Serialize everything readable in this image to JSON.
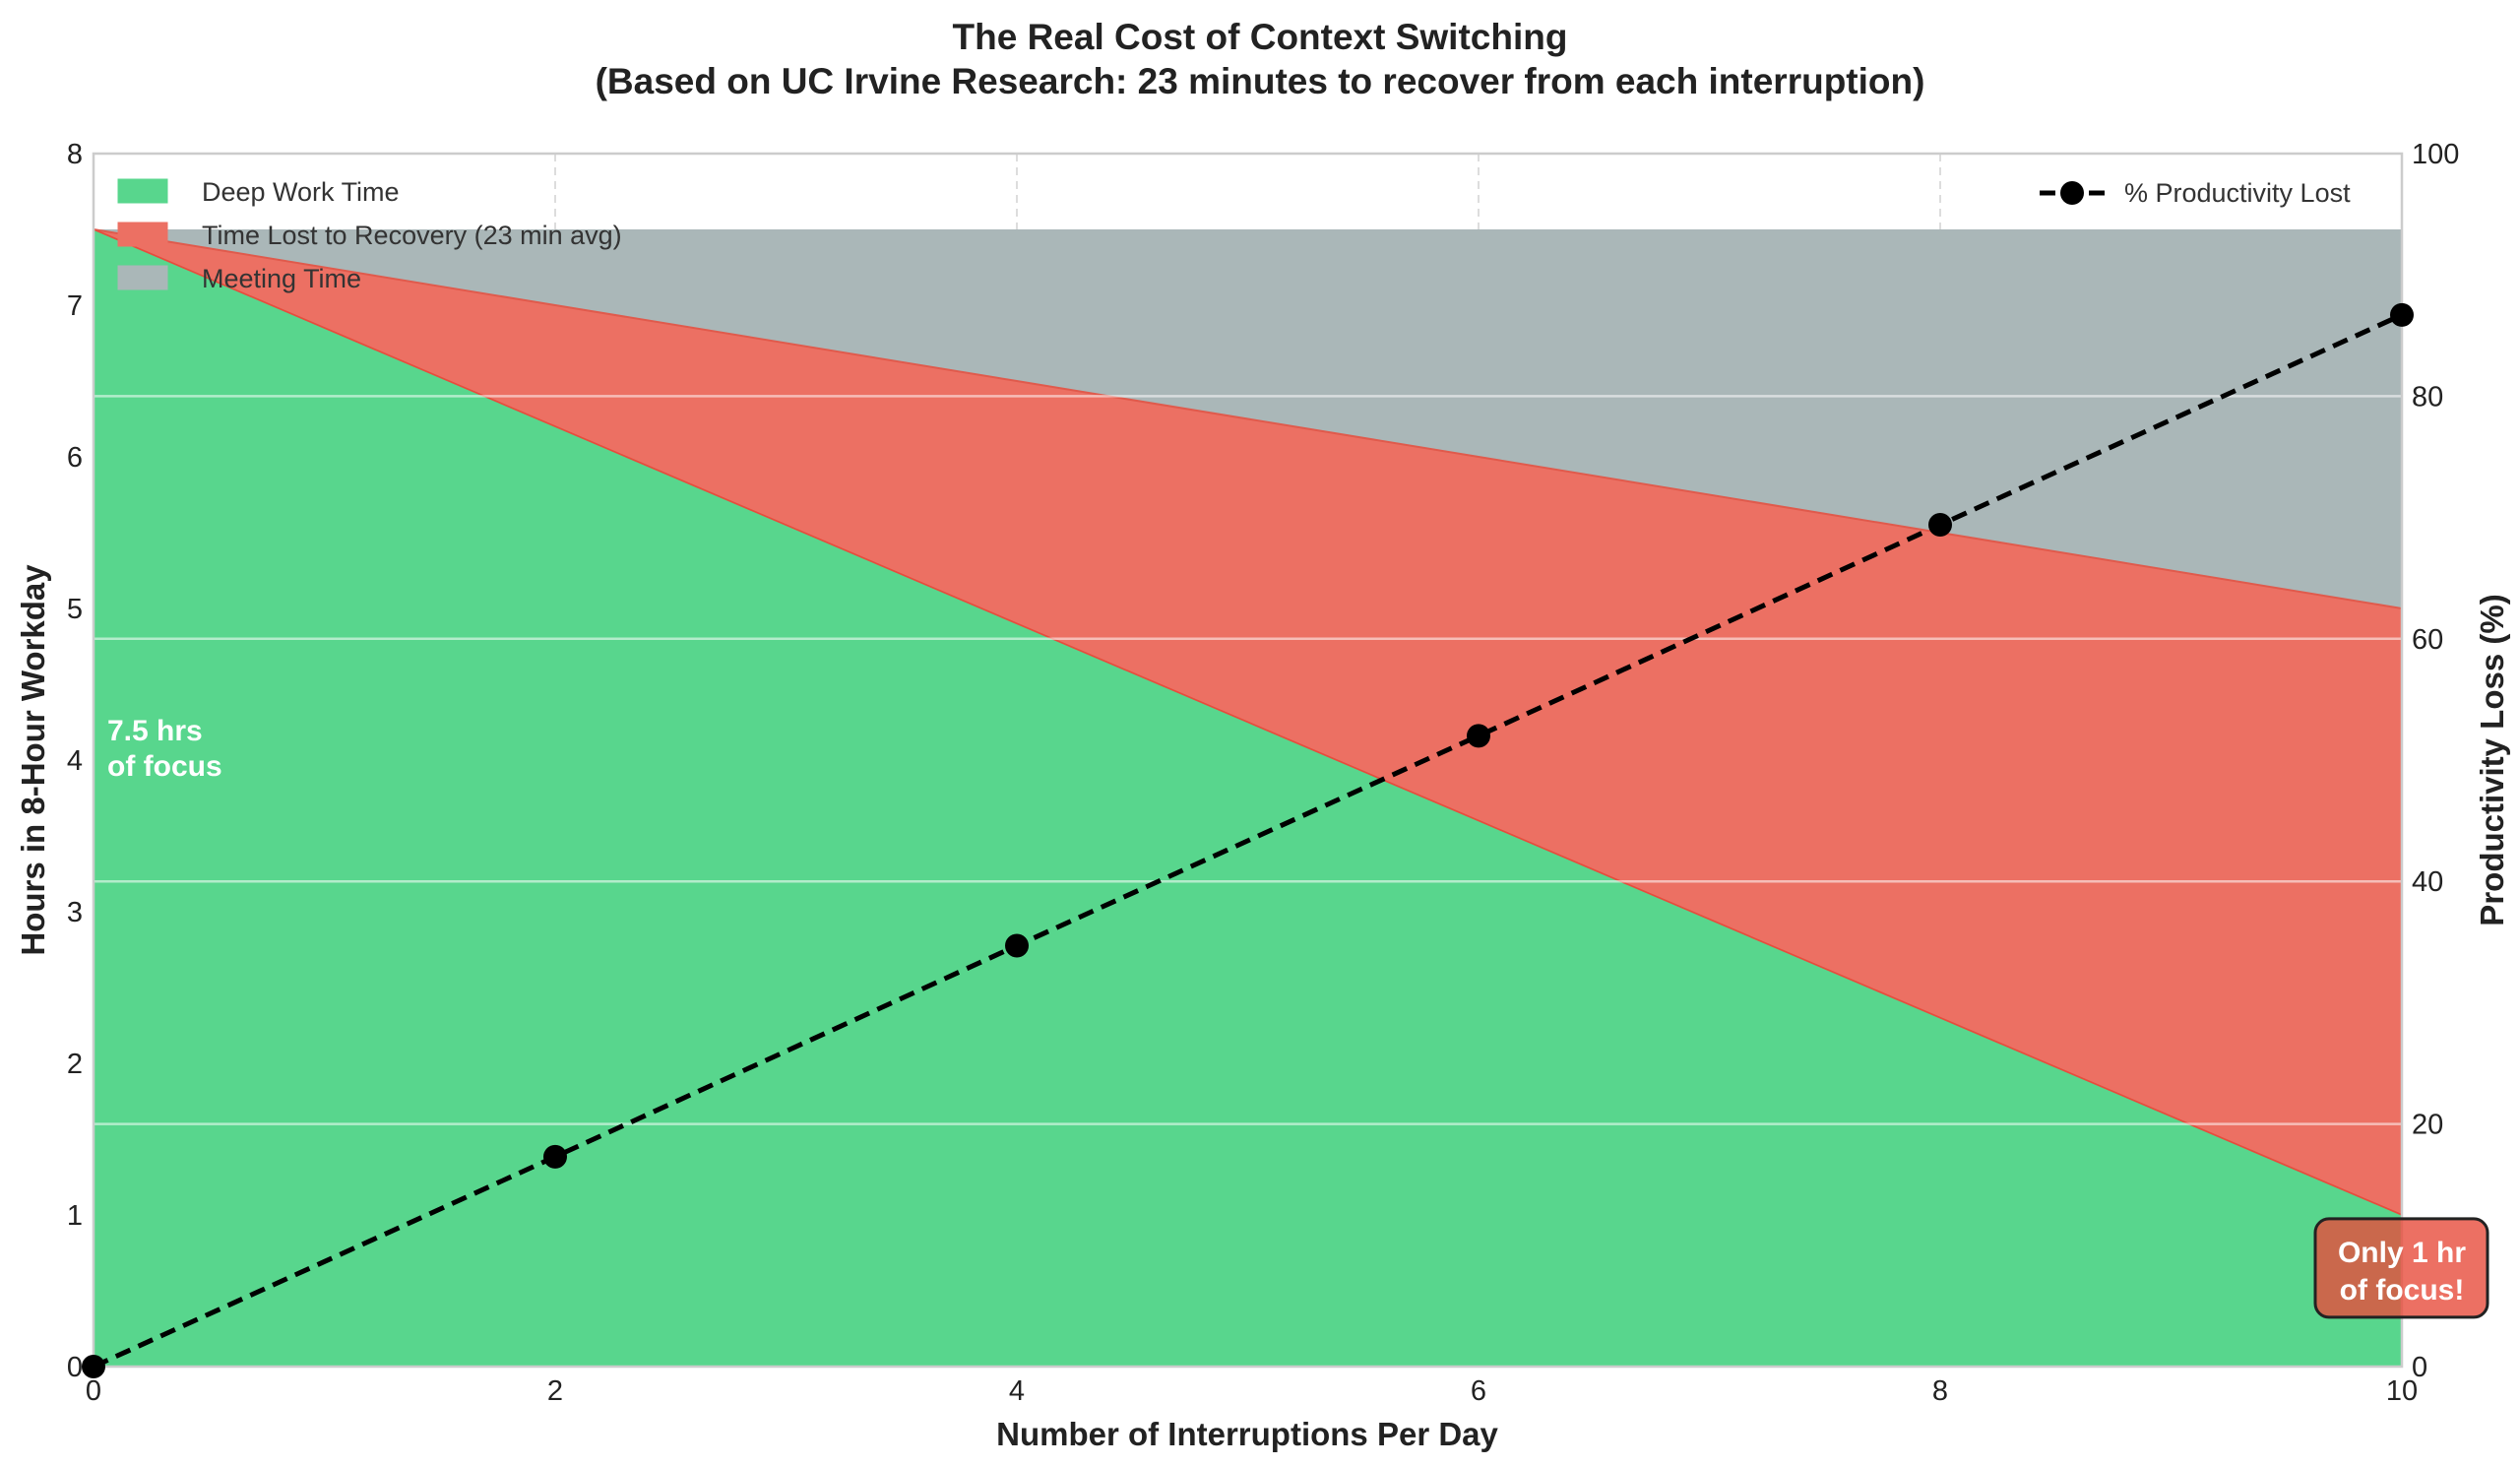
{
  "chart_data": {
    "type": "area",
    "title": "The Real Cost of Context Switching",
    "subtitle": "(Based on UC Irvine Research: 23 minutes to recover from each interruption)",
    "xlabel": "Number of Interruptions Per Day",
    "ylabel": "Hours in 8-Hour Workday",
    "y2label": "Productivity Loss (%)",
    "xlim": [
      0,
      10
    ],
    "ylim": [
      0,
      8
    ],
    "y2lim": [
      0,
      100
    ],
    "xticks": [
      "0",
      "2",
      "4",
      "6",
      "8",
      "10"
    ],
    "yticks": [
      "0",
      "1",
      "2",
      "3",
      "4",
      "5",
      "6",
      "7",
      "8"
    ],
    "y2ticks": [
      "0",
      "20",
      "40",
      "60",
      "80",
      "100"
    ],
    "grid": true,
    "x": [
      0,
      2,
      4,
      6,
      8,
      10
    ],
    "series": [
      {
        "name": "Deep Work Time",
        "type": "stacked-area",
        "values": [
          7.5,
          6.2,
          4.9,
          3.6,
          2.3,
          1.0
        ],
        "color": "#2ecc71"
      },
      {
        "name": "Time Lost to Recovery (23 min avg)",
        "type": "stacked-area",
        "top": [
          7.5,
          7.0,
          6.5,
          6.0,
          5.5,
          5.0
        ],
        "color": "#e74c3c"
      },
      {
        "name": "Meeting Time",
        "type": "stacked-area",
        "top": [
          7.5,
          7.5,
          7.5,
          7.5,
          7.5,
          7.5
        ],
        "color": "#95a5a6"
      },
      {
        "name": "% Productivity Lost",
        "type": "line",
        "axis": "right",
        "values": [
          0,
          17.3,
          34.7,
          52.0,
          69.4,
          86.7
        ],
        "color": "#000000"
      }
    ],
    "legend_left": "upper-left",
    "legend_right": "upper-right",
    "annotations": [
      {
        "text_line1": "7.5 hrs",
        "text_line2": "of focus",
        "at_x": 0,
        "at_y": 4.0
      },
      {
        "text_line1": "Only 1 hr",
        "text_line2": "of focus!",
        "at_x": 10,
        "at_y": 0.65
      }
    ]
  }
}
